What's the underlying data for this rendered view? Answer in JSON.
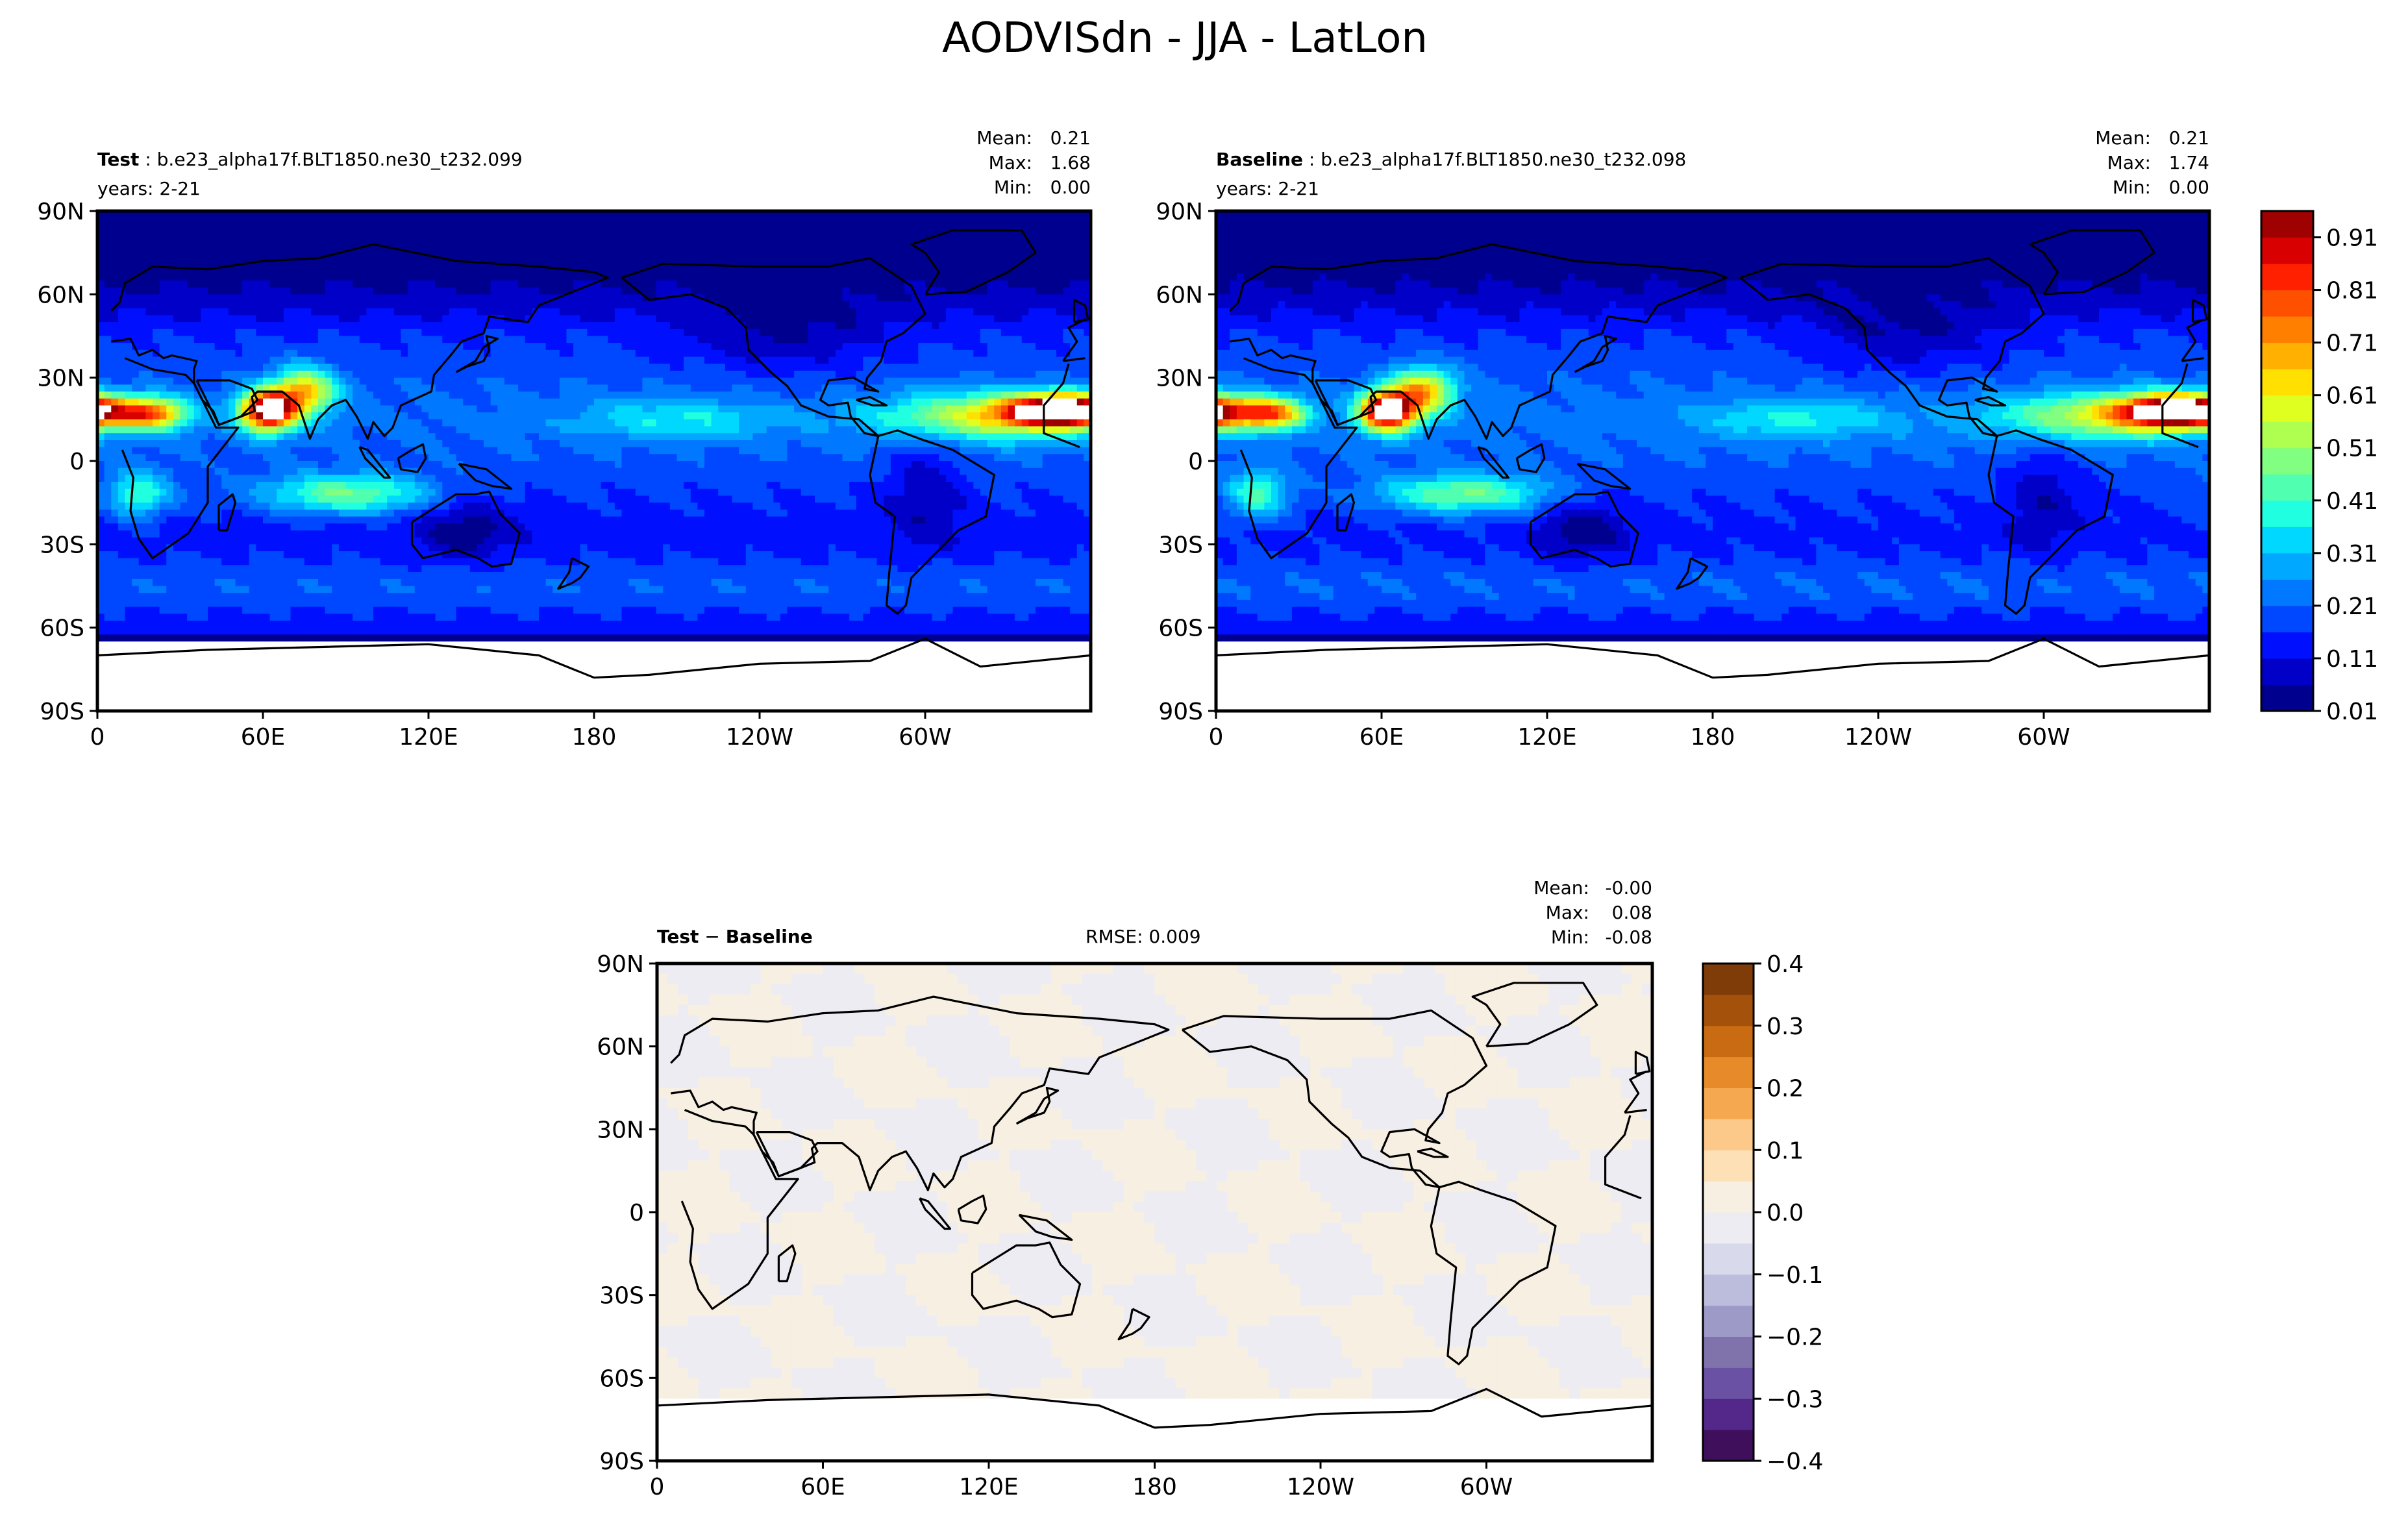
{
  "figure": {
    "title": "AODVISdn - JJA - LatLon"
  },
  "chart_data": [
    {
      "type": "heatmap",
      "name": "Test",
      "case": "b.e23_alpha17f.BLT1850.ne30_t232.099",
      "years": "years: 2-21",
      "stats": {
        "mean": "0.21",
        "max": "1.68",
        "min": "0.00"
      },
      "xlim": [
        0,
        360
      ],
      "ylim": [
        -90,
        90
      ],
      "x_ticks": [
        "0",
        "60E",
        "120E",
        "180",
        "120W",
        "60W"
      ],
      "y_ticks": [
        "90S",
        "60S",
        "30S",
        "0",
        "30N",
        "60N",
        "90N"
      ],
      "colorbar": "shared_aod"
    },
    {
      "type": "heatmap",
      "name": "Baseline",
      "case": "b.e23_alpha17f.BLT1850.ne30_t232.098",
      "years": "years: 2-21",
      "stats": {
        "mean": "0.21",
        "max": "1.74",
        "min": "0.00"
      },
      "xlim": [
        0,
        360
      ],
      "ylim": [
        -90,
        90
      ],
      "x_ticks": [
        "0",
        "60E",
        "120E",
        "180",
        "120W",
        "60W"
      ],
      "y_ticks": [
        "90S",
        "60S",
        "30S",
        "0",
        "30N",
        "60N",
        "90N"
      ],
      "colorbar": "shared_aod"
    },
    {
      "type": "heatmap",
      "name": "Test − Baseline",
      "rmse": "RMSE: 0.009",
      "stats": {
        "mean": "-0.00",
        "max": "0.08",
        "min": "-0.08"
      },
      "xlim": [
        0,
        360
      ],
      "ylim": [
        -90,
        90
      ],
      "x_ticks": [
        "0",
        "60E",
        "120E",
        "180",
        "120W",
        "60W"
      ],
      "y_ticks": [
        "90S",
        "60S",
        "30S",
        "0",
        "30N",
        "60N",
        "90N"
      ],
      "colorbar": "diff"
    }
  ],
  "labels": {
    "mean": "Mean:",
    "max": "Max:",
    "min": "Min:",
    "diff_test": "Test",
    "diff_minus": "−",
    "diff_baseline": "Baseline"
  },
  "colorbars": {
    "shared_aod": {
      "levels": [
        0.01,
        0.06,
        0.11,
        0.16,
        0.21,
        0.26,
        0.31,
        0.36,
        0.41,
        0.46,
        0.51,
        0.56,
        0.61,
        0.66,
        0.71,
        0.76,
        0.81,
        0.86,
        0.91,
        0.96
      ],
      "tick_labels": [
        "0.01",
        "0.11",
        "0.21",
        "0.31",
        "0.41",
        "0.51",
        "0.61",
        "0.71",
        "0.81",
        "0.91"
      ],
      "colors": [
        "#00008f",
        "#0000c8",
        "#0010ff",
        "#0048ff",
        "#0078ff",
        "#00a8ff",
        "#00d8ff",
        "#20ffdf",
        "#50ffaf",
        "#80ff80",
        "#afff50",
        "#dfff20",
        "#ffe000",
        "#ffb000",
        "#ff8000",
        "#ff5000",
        "#ff2000",
        "#d80000",
        "#9f0000"
      ]
    },
    "diff": {
      "levels": [
        -0.4,
        -0.35,
        -0.3,
        -0.25,
        -0.2,
        -0.15,
        -0.1,
        -0.05,
        0.0,
        0.05,
        0.1,
        0.15,
        0.2,
        0.25,
        0.3,
        0.35,
        0.4
      ],
      "tick_labels": [
        "−0.4",
        "−0.3",
        "−0.2",
        "−0.1",
        "0.0",
        "0.1",
        "0.2",
        "0.3",
        "0.4"
      ],
      "colors": [
        "#3f0f5c",
        "#54288a",
        "#6a51a3",
        "#8073ac",
        "#9e9ac8",
        "#bcbddc",
        "#d8daeb",
        "#ececf2",
        "#f7efe2",
        "#fee0b6",
        "#fdc98a",
        "#f6a850",
        "#e68a2a",
        "#c96b12",
        "#a4520b",
        "#7f3b08"
      ]
    }
  },
  "colors": {
    "land_outline": "#000000",
    "missing": "#ffffff"
  }
}
